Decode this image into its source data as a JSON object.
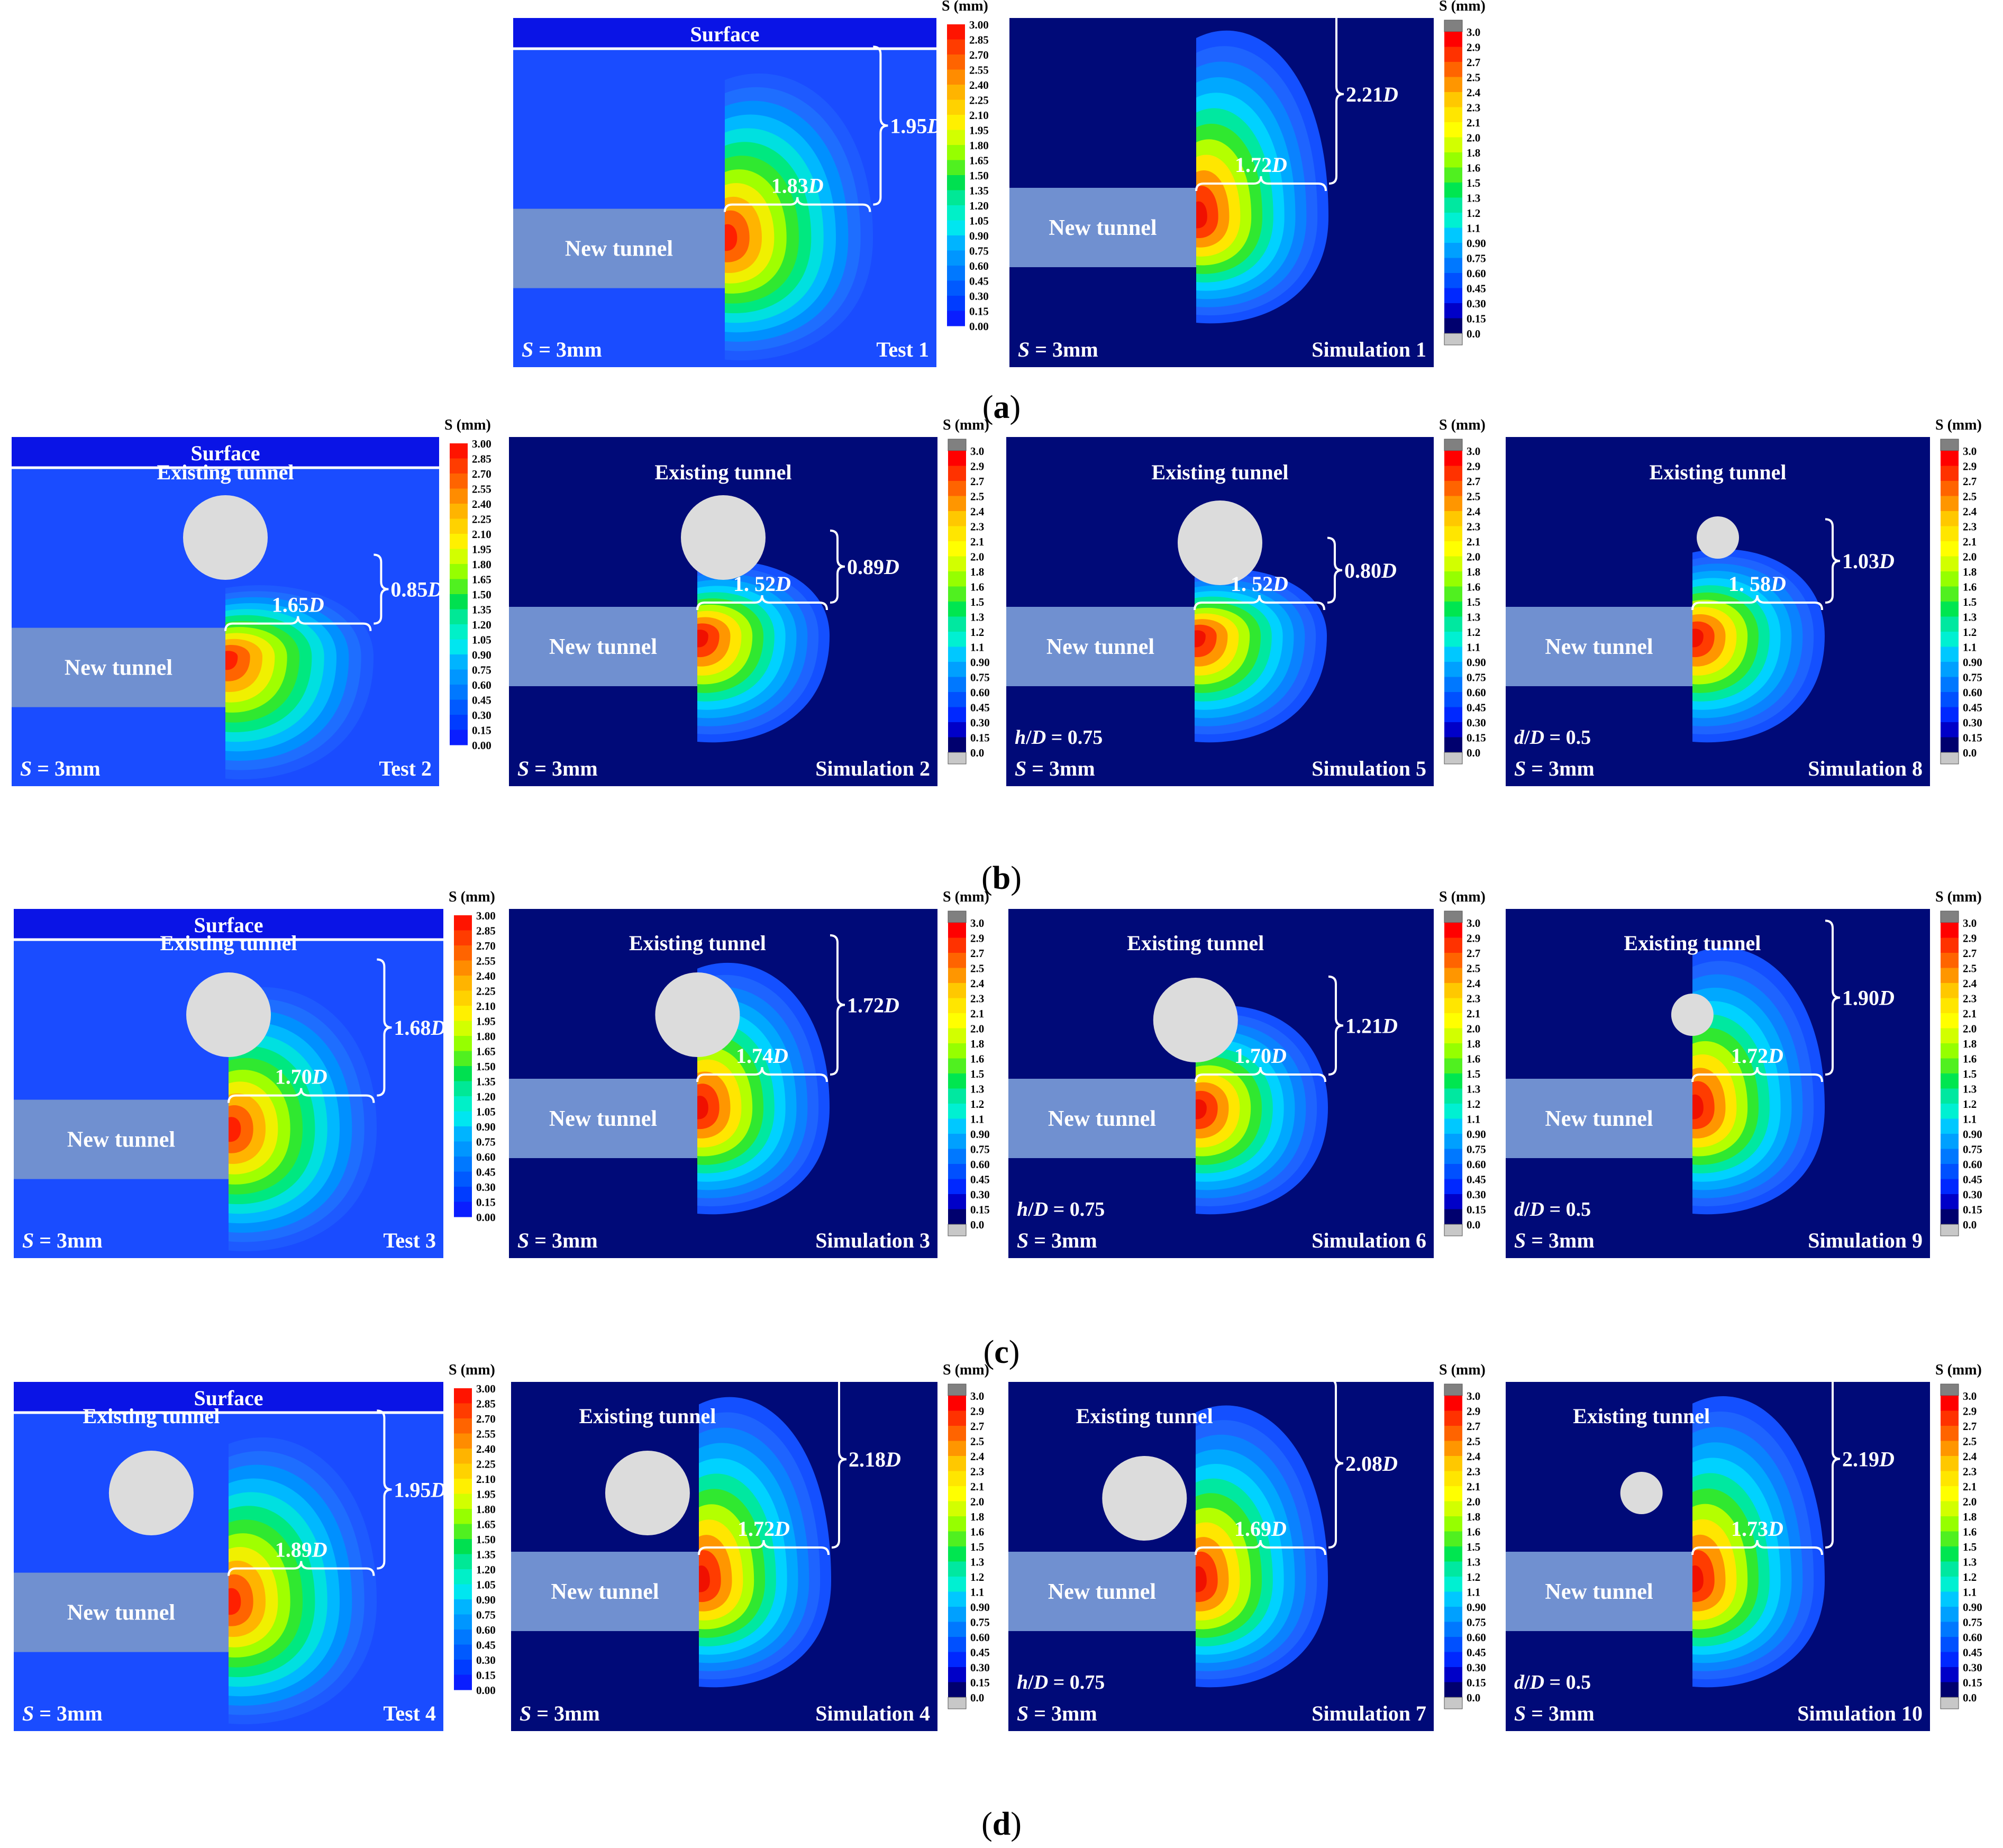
{
  "surface_label": "Surface",
  "new_tunnel_label": "New tunnel",
  "existing_tunnel_label": "Existing tunnel",
  "legend_title": "S (mm)",
  "test_ticks": [
    "3.00",
    "2.85",
    "2.70",
    "2.55",
    "2.40",
    "2.25",
    "2.10",
    "1.95",
    "1.80",
    "1.65",
    "1.50",
    "1.35",
    "1.20",
    "1.05",
    "0.90",
    "0.75",
    "0.60",
    "0.45",
    "0.30",
    "0.15",
    "0.00"
  ],
  "sim_ticks": [
    "3.0",
    "2.9",
    "2.7",
    "2.5",
    "2.4",
    "2.3",
    "2.1",
    "2.0",
    "1.8",
    "1.6",
    "1.5",
    "1.3",
    "1.2",
    "1.1",
    "0.90",
    "0.75",
    "0.60",
    "0.45",
    "0.30",
    "0.15",
    "0.0"
  ],
  "test_colors": [
    "#ff1400",
    "#ff3c00",
    "#ff6400",
    "#ff8c00",
    "#ffb400",
    "#ffd200",
    "#fff000",
    "#d2ff00",
    "#96ff00",
    "#50f020",
    "#00e050",
    "#00e896",
    "#00f0c8",
    "#00e6f0",
    "#00b4ff",
    "#0096ff",
    "#0078ff",
    "#005aff",
    "#003cff",
    "#0a1eff"
  ],
  "sim_colors": [
    "#ff0000",
    "#ff3200",
    "#ff6400",
    "#ff9600",
    "#ffc800",
    "#ffe600",
    "#ffff00",
    "#d2ff00",
    "#96ff00",
    "#50f020",
    "#00e650",
    "#00e8a0",
    "#00f0d2",
    "#00c8ff",
    "#00a0ff",
    "#0078ff",
    "#0050ff",
    "#0028ff",
    "#0000c8",
    "#00006e"
  ],
  "rows": [
    {
      "caption": "(a)",
      "panels": [
        {
          "kind": "test",
          "name": "Test 1",
          "s_label": "S = 3mm",
          "existing": false,
          "width_label": "1.83D",
          "height_label": "1.95D",
          "param": ""
        },
        {
          "kind": "sim",
          "name": "Simulation 1",
          "s_label": "S = 3mm",
          "existing": false,
          "width_label": "1.72D",
          "height_label": "2.21D",
          "param": ""
        }
      ]
    },
    {
      "caption": "(b)",
      "panels": [
        {
          "kind": "test",
          "name": "Test 2",
          "s_label": "S = 3mm",
          "existing": true,
          "width_label": "1.65D",
          "height_label": "0.85D",
          "param": ""
        },
        {
          "kind": "sim",
          "name": "Simulation 2",
          "s_label": "S = 3mm",
          "existing": true,
          "width_label": "1. 52D",
          "height_label": "0.89D",
          "param": ""
        },
        {
          "kind": "sim",
          "name": "Simulation 5",
          "s_label": "S = 3mm",
          "existing": true,
          "width_label": "1. 52D",
          "height_label": "0.80D",
          "param": "h/D = 0.75"
        },
        {
          "kind": "sim",
          "name": "Simulation 8",
          "s_label": "S = 3mm",
          "existing": true,
          "width_label": "1. 58D",
          "height_label": "1.03D",
          "param": "d/D = 0.5"
        }
      ]
    },
    {
      "caption": "(c)",
      "panels": [
        {
          "kind": "test",
          "name": "Test 3",
          "s_label": "S = 3mm",
          "existing": true,
          "width_label": "1.70D",
          "height_label": "1.68D",
          "param": ""
        },
        {
          "kind": "sim",
          "name": "Simulation 3",
          "s_label": "S = 3mm",
          "existing": true,
          "width_label": "1.74D",
          "height_label": "1.72D",
          "param": ""
        },
        {
          "kind": "sim",
          "name": "Simulation 6",
          "s_label": "S = 3mm",
          "existing": true,
          "width_label": "1.70D",
          "height_label": "1.21D",
          "param": "h/D = 0.75"
        },
        {
          "kind": "sim",
          "name": "Simulation 9",
          "s_label": "S = 3mm",
          "existing": true,
          "width_label": "1.72D",
          "height_label": "1.90D",
          "param": "d/D = 0.5"
        }
      ]
    },
    {
      "caption": "(d)",
      "panels": [
        {
          "kind": "test",
          "name": "Test 4",
          "s_label": "S = 3mm",
          "existing": true,
          "width_label": "1.89D",
          "height_label": "1.95D",
          "param": ""
        },
        {
          "kind": "sim",
          "name": "Simulation 4",
          "s_label": "S = 3mm",
          "existing": true,
          "width_label": "1.72D",
          "height_label": "2.18D",
          "param": ""
        },
        {
          "kind": "sim",
          "name": "Simulation 7",
          "s_label": "S = 3mm",
          "existing": true,
          "width_label": "1.69D",
          "height_label": "2.08D",
          "param": "h/D = 0.75"
        },
        {
          "kind": "sim",
          "name": "Simulation 10",
          "s_label": "S = 3mm",
          "existing": true,
          "width_label": "1.73D",
          "height_label": "2.19D",
          "param": "d/D = 0.5"
        }
      ]
    }
  ]
}
